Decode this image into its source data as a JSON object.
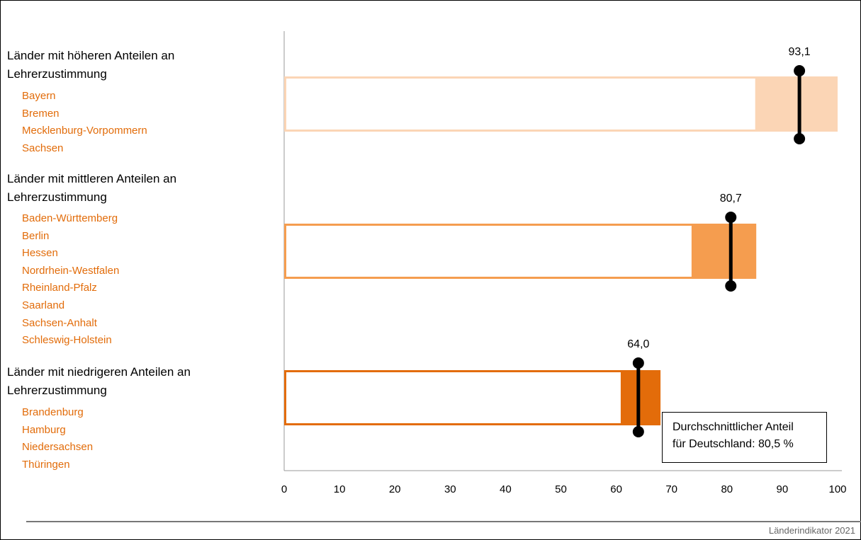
{
  "chart_data": {
    "type": "bar",
    "orientation": "horizontal",
    "xlim": [
      0,
      100
    ],
    "xticks": [
      "0",
      "10",
      "20",
      "30",
      "40",
      "50",
      "60",
      "70",
      "80",
      "90",
      "100"
    ],
    "groups": [
      {
        "title": "Länder mit höheren Anteilen an Lehrerzustimmung",
        "states": [
          "Bayern",
          "Bremen",
          "Mecklenburg-Vorpommern",
          "Sachsen"
        ],
        "value": 93.1,
        "value_label": "93,1",
        "range_min": 85.3,
        "range_max": 100,
        "color": "#fbd5b5"
      },
      {
        "title": "Länder mit mittleren Anteilen an Lehrerzustimmung",
        "states": [
          "Baden-Württemberg",
          "Berlin",
          "Hessen",
          "Nordrhein-Westfalen",
          "Rheinland-Pfalz",
          "Saarland",
          "Sachsen-Anhalt",
          "Schleswig-Holstein"
        ],
        "value": 80.7,
        "value_label": "80,7",
        "range_min": 73.8,
        "range_max": 85.3,
        "color": "#f59d4f"
      },
      {
        "title": "Länder mit niedrigeren Anteilen an Lehrerzustimmung",
        "states": [
          "Brandenburg",
          "Hamburg",
          "Niedersachsen",
          "Thüringen"
        ],
        "value": 64.0,
        "value_label": "64,0",
        "range_min": 61.0,
        "range_max": 68.0,
        "color": "#e36c0a"
      }
    ],
    "reference_note": "Durchschnittlicher Anteil für Deutschland: 80,5 %"
  },
  "legend": {
    "line1": "Durchschnittlicher Anteil",
    "line2": "für Deutschland: 80,5 %"
  },
  "source": "Länderindikator 2021",
  "state_color": "#e26c0a"
}
